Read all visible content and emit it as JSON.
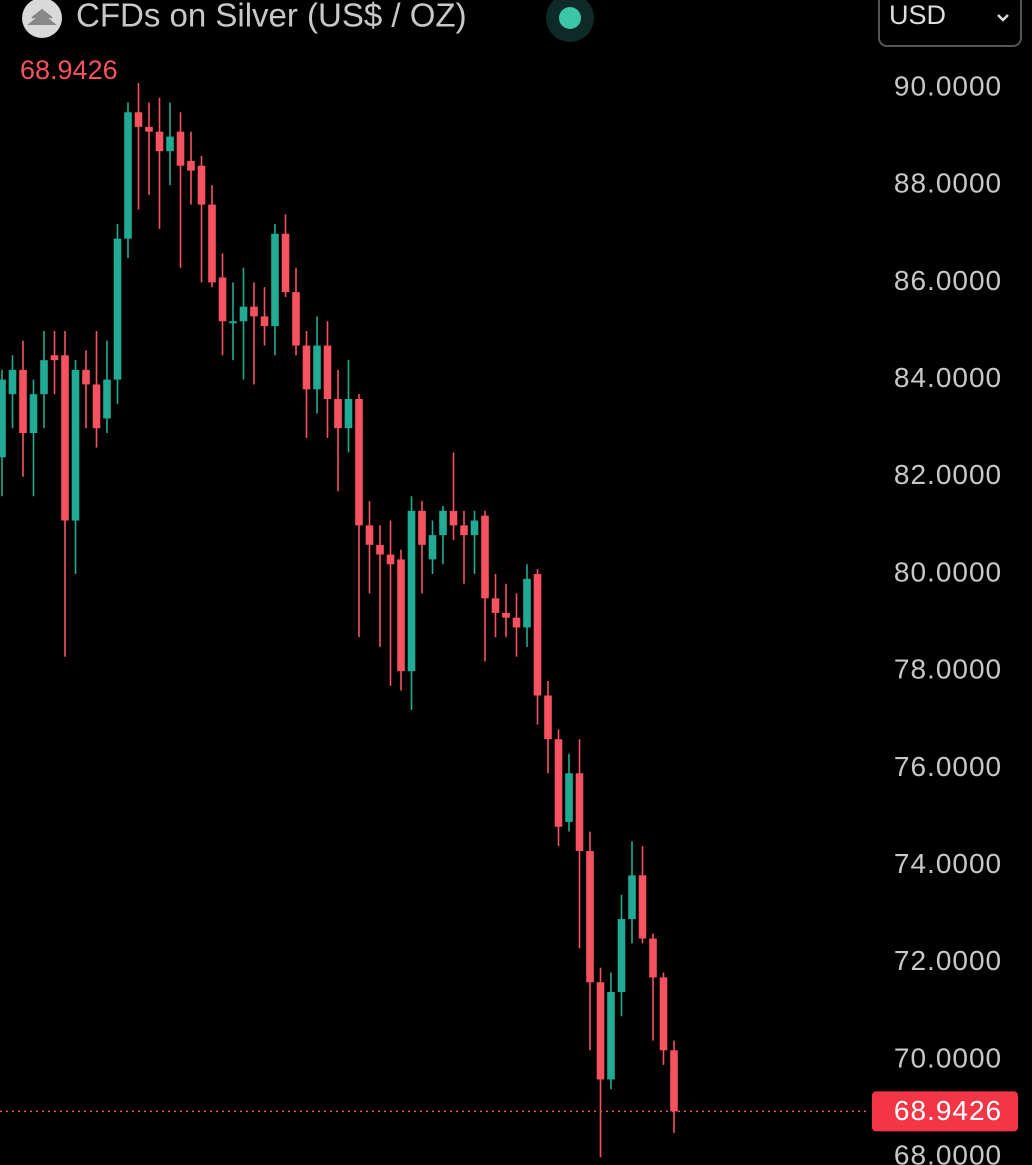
{
  "chart_data": {
    "type": "candlestick",
    "title": "CFDs on Silver (US$ / OZ)",
    "currency": "USD",
    "last_price": 68.9426,
    "up_color": "#22ab94",
    "down_color": "#f7525f",
    "ylim": [
      67.84,
      91.81
    ],
    "yticks": [
      {
        "value": 68,
        "label": "68.0000"
      },
      {
        "value": 70,
        "label": "70.0000"
      },
      {
        "value": 72,
        "label": "72.0000"
      },
      {
        "value": 74,
        "label": "74.0000"
      },
      {
        "value": 76,
        "label": "76.0000"
      },
      {
        "value": 78,
        "label": "78.0000"
      },
      {
        "value": 80,
        "label": "80.0000"
      },
      {
        "value": 82,
        "label": "82.0000"
      },
      {
        "value": 84,
        "label": "84.0000"
      },
      {
        "value": 86,
        "label": "86.0000"
      },
      {
        "value": 88,
        "label": "88.0000"
      },
      {
        "value": 90,
        "label": "90.0000"
      }
    ],
    "open": [
      82.4,
      83.7,
      84.2,
      82.9,
      83.7,
      84.5,
      84.5,
      81.1,
      84.2,
      83.9,
      83.2,
      84.0,
      86.9,
      89.5,
      89.2,
      89.1,
      88.7,
      89.1,
      88.5,
      88.4,
      87.6,
      86.1,
      85.2,
      85.2,
      85.5,
      85.3,
      85.1,
      87.0,
      85.8,
      84.7,
      83.8,
      84.7,
      83.6,
      83.0,
      83.6,
      81.0,
      80.6,
      80.4,
      80.3,
      78.0,
      81.3,
      80.3,
      80.8,
      81.3,
      81.0,
      80.8,
      81.2,
      79.5,
      79.2,
      79.1,
      78.9,
      80.0,
      77.5,
      76.6,
      74.9,
      75.9,
      74.3,
      71.6,
      69.6,
      71.4,
      72.9,
      73.8,
      72.5,
      71.7,
      70.2
    ],
    "high": [
      84.2,
      84.5,
      84.8,
      84.0,
      85.0,
      85.0,
      85.0,
      84.4,
      84.6,
      85.0,
      84.8,
      87.2,
      89.7,
      90.1,
      89.7,
      89.8,
      89.7,
      89.5,
      89.1,
      88.6,
      88.0,
      86.6,
      86.0,
      86.3,
      86.0,
      85.9,
      87.2,
      87.4,
      86.3,
      85.0,
      85.3,
      85.2,
      84.2,
      84.4,
      83.7,
      81.5,
      81.0,
      81.1,
      80.5,
      81.6,
      81.5,
      81.1,
      81.4,
      82.5,
      81.3,
      81.3,
      81.3,
      80.0,
      79.8,
      79.6,
      80.2,
      80.1,
      77.8,
      76.8,
      76.3,
      76.6,
      74.7,
      71.9,
      71.8,
      73.4,
      74.5,
      74.4,
      72.6,
      71.8,
      70.4
    ],
    "low": [
      81.6,
      83.0,
      82.0,
      81.6,
      83.0,
      83.7,
      78.3,
      80.0,
      83.0,
      82.6,
      82.9,
      83.5,
      86.5,
      87.5,
      87.8,
      87.1,
      88.0,
      86.3,
      87.6,
      86.0,
      85.9,
      84.5,
      84.4,
      84.0,
      83.9,
      84.7,
      84.5,
      85.7,
      84.5,
      82.8,
      83.3,
      82.8,
      81.7,
      82.5,
      78.7,
      79.6,
      78.5,
      77.7,
      77.6,
      77.2,
      79.6,
      80.0,
      80.2,
      80.7,
      79.8,
      80.0,
      78.2,
      78.7,
      78.7,
      78.3,
      78.5,
      76.9,
      75.9,
      74.4,
      74.7,
      72.3,
      70.2,
      68.0,
      69.4,
      70.9,
      72.4,
      72.4,
      70.4,
      69.9,
      68.5
    ],
    "close": [
      84.0,
      84.2,
      82.9,
      83.7,
      84.4,
      84.4,
      81.1,
      84.2,
      83.9,
      83.0,
      84.0,
      86.9,
      89.5,
      89.2,
      89.1,
      88.7,
      89.0,
      88.4,
      88.3,
      87.6,
      86.0,
      85.2,
      85.2,
      85.5,
      85.3,
      85.1,
      87.0,
      85.8,
      84.7,
      83.8,
      84.7,
      83.6,
      83.0,
      83.6,
      81.0,
      80.6,
      80.4,
      80.2,
      78.0,
      81.3,
      80.6,
      80.8,
      81.3,
      81.0,
      80.8,
      81.1,
      79.5,
      79.2,
      79.1,
      78.9,
      79.9,
      77.5,
      76.6,
      74.8,
      75.9,
      74.3,
      71.6,
      69.6,
      71.4,
      72.9,
      73.8,
      72.5,
      71.7,
      70.2,
      68.9426
    ]
  }
}
